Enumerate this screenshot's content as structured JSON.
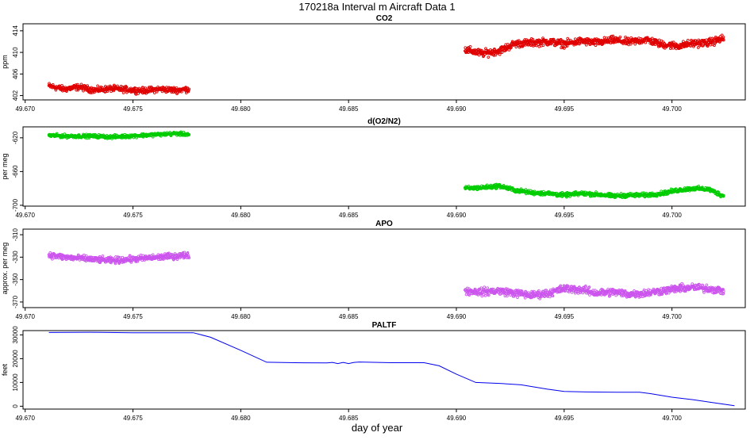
{
  "figure": {
    "title": "170218a   Interval m Aircraft Data 1",
    "xlabel": "day of year"
  },
  "chart_data": [
    {
      "type": "scatter",
      "title": "CO2",
      "ylabel": "ppm",
      "color": "#e00000",
      "xlim": [
        49.6699,
        49.7034
      ],
      "ylim": [
        401.2,
        415.3
      ],
      "xticks": [
        "49.670",
        "49.675",
        "49.680",
        "49.685",
        "49.690",
        "49.695",
        "49.700"
      ],
      "yticks": [
        402,
        406,
        410,
        414
      ],
      "series": [
        {
          "x": [
            49.6711,
            49.6718,
            49.6725,
            49.6732,
            49.674,
            49.6748,
            49.6755,
            49.6762,
            49.677,
            49.6776
          ],
          "y": [
            403.8,
            403.2,
            403.6,
            403.0,
            403.3,
            403.1,
            402.9,
            403.2,
            403.0,
            403.2
          ],
          "spread": 0.8
        },
        {
          "x": [
            49.6904,
            49.6912,
            49.692,
            49.6927,
            49.6935,
            49.6943,
            49.695,
            49.6958,
            49.6965,
            49.6973,
            49.698,
            49.6988,
            49.6995,
            49.7003,
            49.701,
            49.7017,
            49.7024
          ],
          "y": [
            410.5,
            409.8,
            410.3,
            411.6,
            411.8,
            412.0,
            411.6,
            412.1,
            411.8,
            412.3,
            411.9,
            412.4,
            411.5,
            411.2,
            411.7,
            411.8,
            412.6
          ],
          "spread": 1.0
        }
      ]
    },
    {
      "type": "scatter",
      "title": "d(O2/N2)",
      "ylabel": "per meg",
      "color": "#00cc00",
      "xlim": [
        49.6699,
        49.7034
      ],
      "ylim": [
        -701,
        -607
      ],
      "xticks": [
        "49.670",
        "49.675",
        "49.680",
        "49.685",
        "49.690",
        "49.695",
        "49.700"
      ],
      "yticks": [
        -700,
        -660,
        -620
      ],
      "series": [
        {
          "x": [
            49.6711,
            49.6718,
            49.6725,
            49.6732,
            49.674,
            49.6748,
            49.6755,
            49.6762,
            49.677,
            49.6776
          ],
          "y": [
            -617,
            -618,
            -618,
            -618,
            -619,
            -618,
            -617,
            -616,
            -615,
            -616
          ],
          "spread": 3
        },
        {
          "x": [
            49.6904,
            49.6912,
            49.692,
            49.6927,
            49.6935,
            49.6943,
            49.695,
            49.6958,
            49.6965,
            49.6973,
            49.698,
            49.6988,
            49.6995,
            49.7003,
            49.701,
            49.7017,
            49.7024
          ],
          "y": [
            -680,
            -679,
            -677,
            -682,
            -685,
            -686,
            -688,
            -686,
            -687,
            -689,
            -688,
            -688,
            -686,
            -682,
            -680,
            -681,
            -689
          ],
          "spread": 3.5
        }
      ]
    },
    {
      "type": "scatter",
      "title": "APO",
      "ylabel": "approx. per meg",
      "color": "#cc55ee",
      "xlim": [
        49.6699,
        49.7034
      ],
      "ylim": [
        -375,
        -305
      ],
      "xticks": [
        "49.670",
        "49.675",
        "49.680",
        "49.685",
        "49.690",
        "49.695",
        "49.700"
      ],
      "yticks": [
        -370,
        -350,
        -330,
        -310
      ],
      "series": [
        {
          "x": [
            49.6711,
            49.6718,
            49.6725,
            49.6732,
            49.674,
            49.6748,
            49.6755,
            49.6762,
            49.677,
            49.6776
          ],
          "y": [
            -328,
            -330,
            -331,
            -332,
            -333,
            -332,
            -331,
            -330,
            -329,
            -328
          ],
          "spread": 4
        },
        {
          "x": [
            49.6904,
            49.6912,
            49.692,
            49.6927,
            49.6935,
            49.6943,
            49.695,
            49.6958,
            49.6965,
            49.6973,
            49.698,
            49.6988,
            49.6995,
            49.7003,
            49.701,
            49.7017,
            49.7024
          ],
          "y": [
            -360,
            -361,
            -360,
            -362,
            -364,
            -362,
            -358,
            -359,
            -362,
            -361,
            -363,
            -362,
            -360,
            -358,
            -357,
            -358,
            -360
          ],
          "spread": 5
        }
      ]
    },
    {
      "type": "line",
      "title": "PALTF",
      "ylabel": "feet",
      "color": "#0000ee",
      "xlim": [
        49.6699,
        49.7034
      ],
      "ylim": [
        -1200,
        31800
      ],
      "xticks": [
        "49.670",
        "49.675",
        "49.680",
        "49.685",
        "49.690",
        "49.695",
        "49.700"
      ],
      "yticks": [
        0,
        10000,
        20000,
        30000
      ],
      "x": [
        49.6711,
        49.673,
        49.675,
        49.6778,
        49.6786,
        49.68,
        49.6812,
        49.6825,
        49.684,
        49.6855,
        49.687,
        49.6885,
        49.6892,
        49.69,
        49.6909,
        49.692,
        49.693,
        49.6942,
        49.695,
        49.696,
        49.6975,
        49.6985,
        49.699,
        49.7,
        49.701,
        49.702,
        49.7029
      ],
      "y": [
        31000,
        31100,
        30900,
        30900,
        29000,
        23500,
        18500,
        18300,
        18200,
        18600,
        18300,
        18300,
        17000,
        13500,
        10000,
        9600,
        9000,
        7200,
        6200,
        6000,
        5900,
        5900,
        5300,
        3800,
        2700,
        1400,
        200
      ]
    }
  ]
}
